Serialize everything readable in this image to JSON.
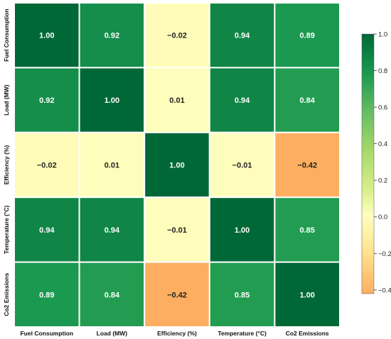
{
  "chart_data": {
    "type": "heatmap",
    "title": "",
    "x_labels": [
      "Fuel Consumption",
      "Load (MW)",
      "Efficiency (%)",
      "Temperature (°C)",
      "Co2 Emissions"
    ],
    "y_labels": [
      "Fuel Consumption",
      "Load (MW)",
      "Efficiency (%)",
      "Temperature (°C)",
      "Co2 Emissions"
    ],
    "values": [
      [
        1.0,
        0.92,
        -0.02,
        0.94,
        0.89
      ],
      [
        0.92,
        1.0,
        0.01,
        0.94,
        0.84
      ],
      [
        -0.02,
        0.01,
        1.0,
        -0.01,
        -0.42
      ],
      [
        0.94,
        0.94,
        -0.01,
        1.0,
        0.85
      ],
      [
        0.89,
        0.84,
        -0.42,
        0.85,
        1.0
      ]
    ],
    "annotations": [
      [
        "1.00",
        "0.92",
        "−0.02",
        "0.94",
        "0.89"
      ],
      [
        "0.92",
        "1.00",
        "0.01",
        "0.94",
        "0.84"
      ],
      [
        "−0.02",
        "0.01",
        "1.00",
        "−0.01",
        "−0.42"
      ],
      [
        "0.94",
        "0.94",
        "−0.01",
        "1.00",
        "0.85"
      ],
      [
        "0.89",
        "0.84",
        "−0.42",
        "0.85",
        "1.00"
      ]
    ],
    "colormap": "RdYlGn",
    "vmin": -0.42,
    "vmax": 1.0,
    "colorbar": {
      "tick_values": [
        1.0,
        0.8,
        0.6,
        0.4,
        0.2,
        0.0,
        -0.2,
        -0.4
      ],
      "tick_labels": [
        "1.0",
        "0.8",
        "0.6",
        "0.4",
        "0.2",
        "0.0",
        "−0.2",
        "−0.4"
      ],
      "position": "right"
    },
    "grid": false
  }
}
